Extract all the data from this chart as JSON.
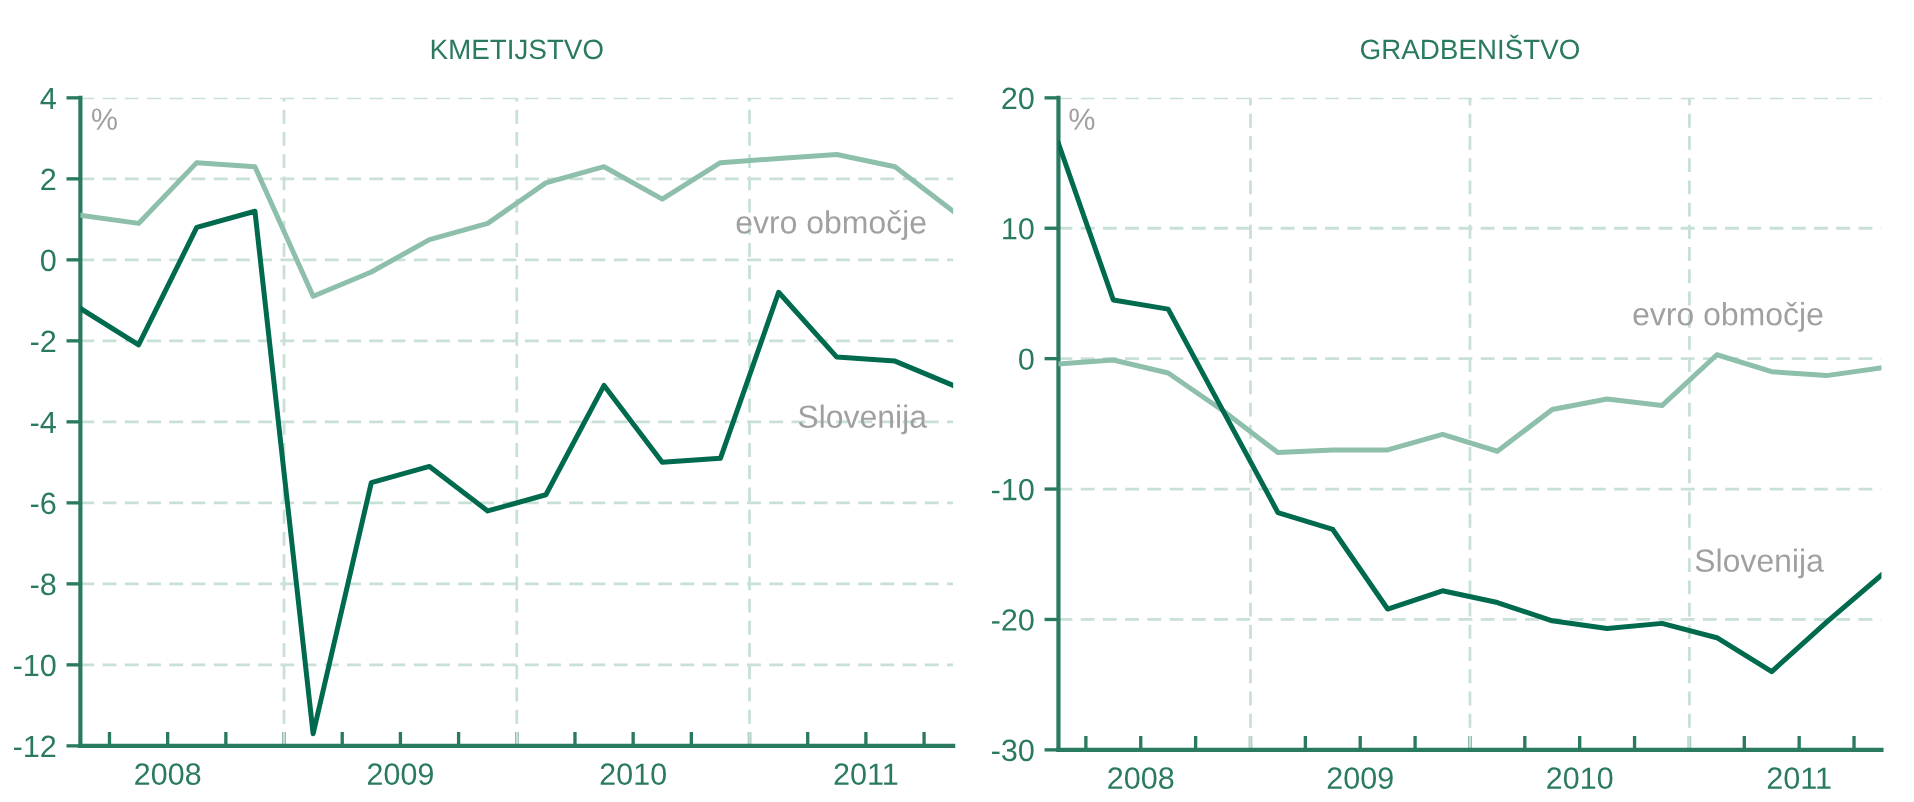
{
  "chart_data": [
    {
      "type": "line",
      "title": "KMETIJSTVO",
      "annotations": [
        "%"
      ],
      "x": [
        2008.125,
        2008.375,
        2008.625,
        2008.875,
        2009.125,
        2009.375,
        2009.625,
        2009.875,
        2010.125,
        2010.375,
        2010.625,
        2010.875,
        2011.125,
        2011.375,
        2011.625,
        2011.875
      ],
      "series": [
        {
          "name": "evro območje",
          "color": "#8dbfab",
          "values": [
            1.1,
            0.9,
            2.4,
            2.3,
            -0.9,
            -0.3,
            0.5,
            0.9,
            1.9,
            2.3,
            1.5,
            2.4,
            2.5,
            2.6,
            2.3,
            1.2
          ]
        },
        {
          "name": "Slovenija",
          "color": "#006a4e",
          "values": [
            -1.2,
            -2.1,
            0.8,
            1.2,
            -11.7,
            -5.5,
            -5.1,
            -6.2,
            -5.8,
            -3.1,
            -5.0,
            -4.9,
            -0.8,
            -2.4,
            -2.5,
            -3.1
          ]
        }
      ],
      "xlim": [
        2008.125,
        2011.875
      ],
      "xticks": [
        {
          "value": 2008.25,
          "label": null
        },
        {
          "value": 2008.5,
          "label": "2008"
        },
        {
          "value": 2008.75,
          "label": null
        },
        {
          "value": 2009,
          "label": null
        },
        {
          "value": 2009.25,
          "label": null
        },
        {
          "value": 2009.5,
          "label": "2009"
        },
        {
          "value": 2009.75,
          "label": null
        },
        {
          "value": 2010,
          "label": null
        },
        {
          "value": 2010.25,
          "label": null
        },
        {
          "value": 2010.5,
          "label": "2010"
        },
        {
          "value": 2010.75,
          "label": null
        },
        {
          "value": 2011,
          "label": null
        },
        {
          "value": 2011.25,
          "label": null
        },
        {
          "value": 2011.5,
          "label": "2011"
        },
        {
          "value": 2011.75,
          "label": null
        }
      ],
      "ylim": [
        -12,
        4
      ],
      "yticks": [
        -12,
        -10,
        -8,
        -6,
        -4,
        -2,
        0,
        2,
        4
      ],
      "ref_lines": [
        {
          "axis": "x",
          "value": 2009,
          "color": "#c8e0d6",
          "line_style": "dashed"
        },
        {
          "axis": "x",
          "value": 2010,
          "color": "#c8e0d6",
          "line_style": "dashed"
        },
        {
          "axis": "x",
          "value": 2011,
          "color": "#c8e0d6",
          "line_style": "dashed"
        }
      ],
      "grid": "y",
      "legend": false,
      "marker": "none",
      "line_style": "solid"
    },
    {
      "type": "line",
      "title": "GRADBENIŠTVO",
      "annotations": [
        "%"
      ],
      "x": [
        2008.125,
        2008.375,
        2008.625,
        2008.875,
        2009.125,
        2009.375,
        2009.625,
        2009.875,
        2010.125,
        2010.375,
        2010.625,
        2010.875,
        2011.125,
        2011.375,
        2011.625,
        2011.875
      ],
      "series": [
        {
          "name": "evro območje",
          "color": "#8dbfab",
          "values": [
            -0.4,
            -0.1,
            -1.1,
            -4.0,
            -7.2,
            -7.0,
            -7.0,
            -5.8,
            -7.1,
            -3.9,
            -3.1,
            -3.6,
            0.3,
            -1.0,
            -1.3,
            -0.7
          ]
        },
        {
          "name": "Slovenija",
          "color": "#006a4e",
          "values": [
            16.5,
            4.5,
            3.8,
            -4.0,
            -11.8,
            -13.1,
            -19.2,
            -17.8,
            -18.7,
            -20.1,
            -20.7,
            -20.3,
            -21.4,
            -24.0,
            -20.2,
            -16.6
          ]
        }
      ],
      "xlim": [
        2008.125,
        2011.875
      ],
      "xticks": [
        {
          "value": 2008.25,
          "label": null
        },
        {
          "value": 2008.5,
          "label": "2008"
        },
        {
          "value": 2008.75,
          "label": null
        },
        {
          "value": 2009,
          "label": null
        },
        {
          "value": 2009.25,
          "label": null
        },
        {
          "value": 2009.5,
          "label": "2009"
        },
        {
          "value": 2009.75,
          "label": null
        },
        {
          "value": 2010,
          "label": null
        },
        {
          "value": 2010.25,
          "label": null
        },
        {
          "value": 2010.5,
          "label": "2010"
        },
        {
          "value": 2010.75,
          "label": null
        },
        {
          "value": 2011,
          "label": null
        },
        {
          "value": 2011.25,
          "label": null
        },
        {
          "value": 2011.5,
          "label": "2011"
        },
        {
          "value": 2011.75,
          "label": null
        }
      ],
      "ylim": [
        -30,
        20
      ],
      "yticks": [
        -30,
        -20,
        -10,
        0,
        10,
        20
      ],
      "ref_lines": [
        {
          "axis": "x",
          "value": 2009,
          "color": "#c8e0d6",
          "line_style": "dashed"
        },
        {
          "axis": "x",
          "value": 2010,
          "color": "#c8e0d6",
          "line_style": "dashed"
        },
        {
          "axis": "x",
          "value": 2011,
          "color": "#c8e0d6",
          "line_style": "dashed"
        }
      ],
      "grid": "y",
      "legend": false,
      "marker": "none",
      "line_style": "solid"
    }
  ]
}
